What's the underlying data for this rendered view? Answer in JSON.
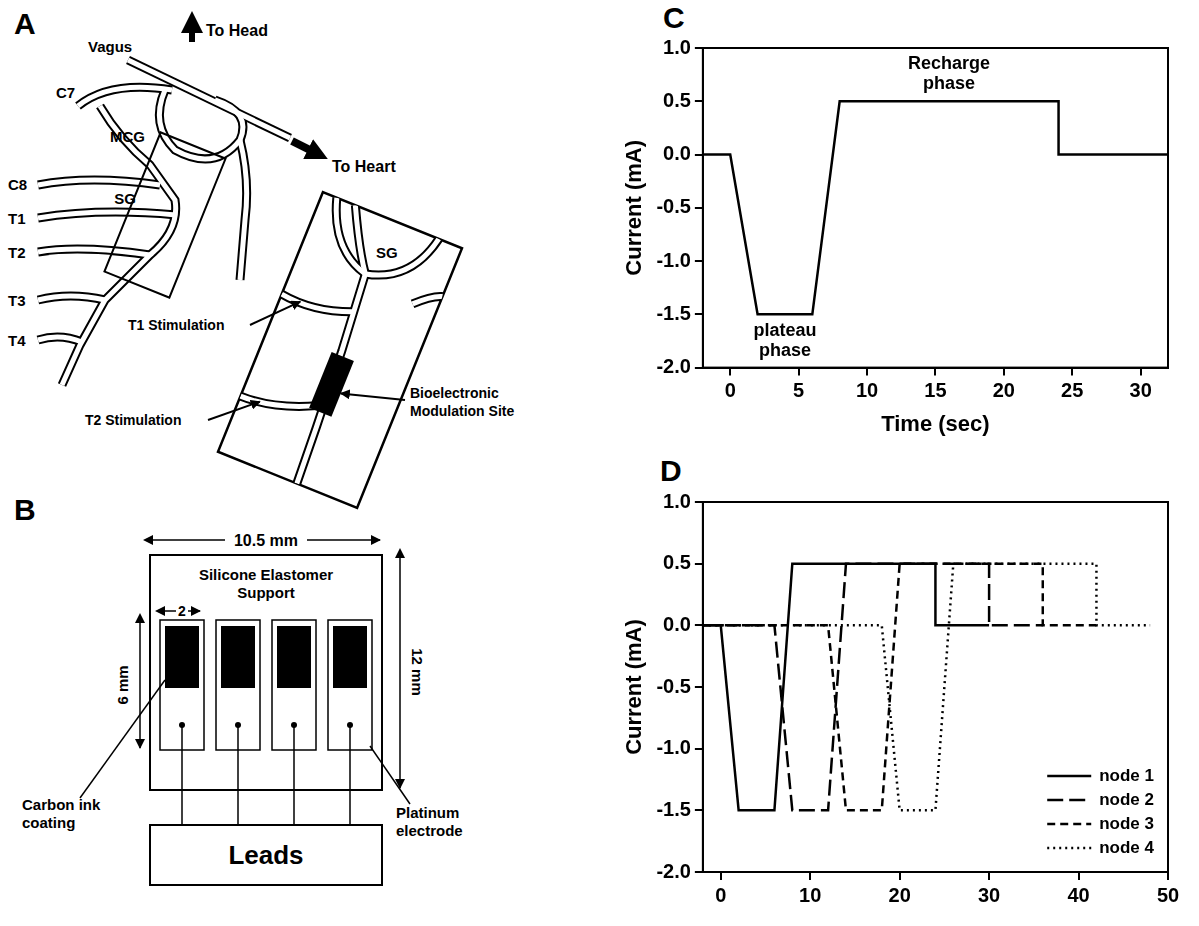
{
  "diagram_a": {
    "letter": "A",
    "labels": {
      "to_head": "To Head",
      "vagus": "Vagus",
      "c7": "C7",
      "mcg": "MCG",
      "to_heart": "To Heart",
      "c8": "C8",
      "sg": "SG",
      "t1": "T1",
      "t2": "T2",
      "t3": "T3",
      "t4": "T4",
      "inset_sg": "SG",
      "t1_stimulation": "T1 Stimulation",
      "t2_stimulation": "T2 Stimulation",
      "modulation_site": [
        "Bioelectronic",
        "Modulation Site"
      ]
    }
  },
  "diagram_b": {
    "letter": "B",
    "labels": {
      "width": "10.5 mm",
      "support": [
        "Silicone Elastomer",
        "Support"
      ],
      "electrode_width": "2",
      "electrode_height": "6 mm",
      "height": "12 mm",
      "coating": [
        "Carbon ink",
        "coating"
      ],
      "electrode": [
        "Platinum",
        "electrode"
      ],
      "leads": "Leads"
    }
  },
  "chart_data": [
    {
      "panel": "C",
      "type": "line",
      "x_label": "Time (sec)",
      "y_label": "Current (mA)",
      "xlim": [
        -2,
        32
      ],
      "xticks": [
        0,
        5,
        10,
        15,
        20,
        25,
        30
      ],
      "ylim": [
        -2,
        1
      ],
      "yticks": [
        {
          "value": -2,
          "label": "-2.0"
        },
        -1.5,
        {
          "value": -1,
          "label": "-1.0"
        },
        -0.5,
        {
          "value": 0,
          "label": "0.0"
        },
        0.5,
        {
          "value": 1,
          "label": "1.0"
        }
      ],
      "grid": false,
      "series": [
        {
          "color": "#000000",
          "line_style": "solid",
          "x": [
            -2,
            0,
            2,
            6,
            8,
            24,
            24,
            32
          ],
          "values": [
            0,
            0,
            -1.5,
            -1.5,
            0.5,
            0.5,
            0,
            0
          ]
        }
      ],
      "annotations": [
        {
          "text": "Recharge phase",
          "x": 16,
          "y": 0.5
        },
        {
          "text": "plateau phase",
          "x": 4,
          "y": -1.5
        }
      ]
    },
    {
      "panel": "D",
      "type": "line",
      "y_label": "Current (mA)",
      "xlim": [
        -2,
        50
      ],
      "xticks": [
        0,
        10,
        20,
        30,
        40,
        50
      ],
      "ylim": [
        -2,
        1
      ],
      "yticks": [
        {
          "value": -2,
          "label": "-2.0"
        },
        -1.5,
        {
          "value": -1,
          "label": "-1.0"
        },
        -0.5,
        {
          "value": 0,
          "label": "0.0"
        },
        0.5,
        {
          "value": 1,
          "label": "1.0"
        }
      ],
      "grid": false,
      "legend": "lower right",
      "series": [
        {
          "name": "node 1",
          "color": "#000000",
          "line_style": "solid",
          "x": [
            -2,
            0,
            2,
            6,
            8,
            24,
            24,
            30
          ],
          "values": [
            0,
            0,
            -1.5,
            -1.5,
            0.5,
            0.5,
            0,
            0
          ]
        },
        {
          "name": "node 2",
          "color": "#000000",
          "line_style": "longdash",
          "x": [
            -2,
            6,
            8,
            12,
            14,
            30,
            30,
            36
          ],
          "values": [
            0,
            0,
            -1.5,
            -1.5,
            0.5,
            0.5,
            0,
            0
          ]
        },
        {
          "name": "node 3",
          "color": "#000000",
          "line_style": "dash",
          "x": [
            -2,
            12,
            14,
            18,
            20,
            36,
            36,
            42
          ],
          "values": [
            0,
            0,
            -1.5,
            -1.5,
            0.5,
            0.5,
            0,
            0
          ]
        },
        {
          "name": "node 4",
          "color": "#000000",
          "line_style": "dot",
          "x": [
            -2,
            18,
            20,
            24,
            26,
            42,
            42,
            48
          ],
          "values": [
            0,
            0,
            -1.5,
            -1.5,
            0.5,
            0.5,
            0,
            0
          ]
        }
      ]
    }
  ]
}
